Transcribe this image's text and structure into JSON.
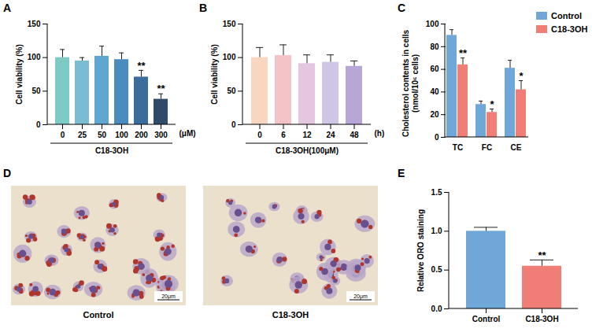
{
  "chart_data": [
    {
      "panel": "A",
      "type": "bar",
      "categories": [
        "0",
        "25",
        "50",
        "100",
        "200",
        "300"
      ],
      "values": [
        100,
        95,
        102,
        97,
        71,
        38
      ],
      "errors": [
        12,
        5,
        15,
        10,
        10,
        8
      ],
      "significance": [
        null,
        null,
        null,
        null,
        "**",
        "**"
      ],
      "colors": [
        "#7ecac4",
        "#7abcd2",
        "#5fa6d0",
        "#4a8cbf",
        "#3b6d9c",
        "#2e4b69"
      ],
      "ylim": [
        0,
        150
      ],
      "yticks": [
        0,
        50,
        100,
        150
      ],
      "y_label": "Cell viability (%)",
      "x_label": "C18-3OH",
      "x_unit": "(μM)"
    },
    {
      "panel": "B",
      "type": "bar",
      "categories": [
        "0",
        "6",
        "12",
        "24",
        "48"
      ],
      "values": [
        100,
        103,
        91,
        93,
        87
      ],
      "errors": [
        15,
        16,
        13,
        11,
        8
      ],
      "colors": [
        "#f8d6c0",
        "#f4c3c8",
        "#e4c6e0",
        "#cfc5e5",
        "#b7a6d6"
      ],
      "ylim": [
        0,
        150
      ],
      "yticks": [
        0,
        50,
        100,
        150
      ],
      "y_label": "Cell viability (%)",
      "x_label": "C18-3OH(100μM)",
      "x_unit": "(h)"
    },
    {
      "panel": "C",
      "type": "grouped_bar",
      "categories": [
        "TC",
        "FC",
        "CE"
      ],
      "series": [
        {
          "name": "Control",
          "color": "#6fa8d8",
          "values": [
            90,
            29,
            61
          ],
          "errors": [
            5,
            3,
            7
          ]
        },
        {
          "name": "C18-3OH",
          "color": "#f07e76",
          "values": [
            64,
            22,
            42
          ],
          "errors": [
            6,
            3,
            8
          ],
          "significance": [
            "**",
            "*",
            "*"
          ]
        }
      ],
      "ylim": [
        0,
        100
      ],
      "yticks": [
        0,
        20,
        40,
        60,
        80,
        100
      ],
      "y_label": "Cholesterol contents in cells (nmol/10⁶ cells)",
      "legend": "top-right"
    },
    {
      "panel": "E",
      "type": "bar",
      "categories": [
        "Control",
        "C18-3OH"
      ],
      "values": [
        1.0,
        0.55
      ],
      "errors": [
        0.05,
        0.08
      ],
      "significance": [
        null,
        "**"
      ],
      "colors": [
        "#6fa8d8",
        "#f07e76"
      ],
      "ylim": [
        0,
        1.5
      ],
      "yticks": [
        {
          "value": 0,
          "label": "0.0"
        },
        {
          "value": 0.5,
          "label": "0.5"
        },
        {
          "value": 1,
          "label": "1.0"
        },
        {
          "value": 1.5,
          "label": "1.5"
        }
      ],
      "y_label": "Relative ORO staining"
    }
  ],
  "micrographs": {
    "panel": "D",
    "images": [
      {
        "label": "Control",
        "scale_bar": "20μm"
      },
      {
        "label": "C18-3OH",
        "scale_bar": "20μm"
      }
    ]
  }
}
